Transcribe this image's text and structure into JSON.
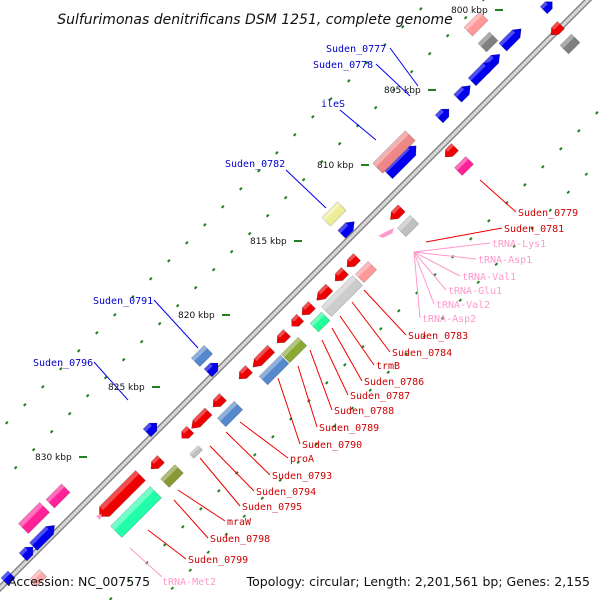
{
  "title": "Sulfurimonas denitrificans DSM 1251, complete genome",
  "footer": {
    "accession": "Accession: NC_007575",
    "stats": "Topology: circular; Length: 2,201,561 bp; Genes: 2,155"
  },
  "kbp_marks": [
    "800 kbp",
    "805 kbp",
    "810 kbp",
    "815 kbp",
    "820 kbp",
    "825 kbp",
    "830 kbp"
  ],
  "labels_upper": [
    "Suden_0777",
    "Suden_0778",
    "ileS",
    "Suden_0782",
    "Suden_0791",
    "Suden_0796"
  ],
  "labels_lower": [
    "Suden_0779",
    "Suden_0781",
    "Suden_0783",
    "Suden_0784",
    "trmB",
    "Suden_0786",
    "Suden_0787",
    "Suden_0788",
    "Suden_0789",
    "Suden_0790",
    "proA",
    "Suden_0793",
    "Suden_0794",
    "Suden_0795",
    "mraW",
    "Suden_0798",
    "Suden_0799"
  ],
  "labels_trna": [
    "tRNA-Lys1",
    "tRNA-Asp1",
    "tRNA-Val1",
    "tRNA-Glu1",
    "tRNA-Val2",
    "tRNA-Asp2",
    "tRNA-Met2"
  ],
  "colors": {
    "backbone": "#b4b4b4",
    "forward_cds": "#0000ee",
    "reverse_cds": "#ee0000",
    "label_upper": "#0000cc",
    "label_lower": "#cc0000",
    "trna": "#ff99cc",
    "tick": "#208020"
  }
}
